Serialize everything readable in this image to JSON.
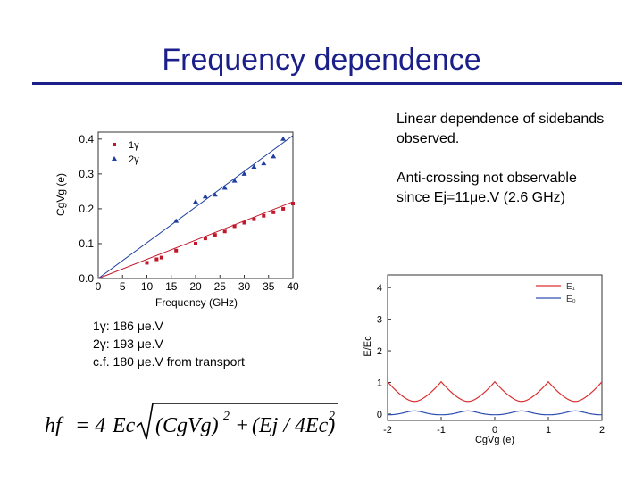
{
  "slide": {
    "title": "Frequency dependence",
    "notes": {
      "linear": "Linear dependence of sidebands observed.",
      "anticrossing": "Anti-crossing not observable since Ej=11μe.V (2.6 GHz)"
    },
    "fit_results": [
      "1γ: 186 μe.V",
      "2γ: 193 μe.V",
      "c.f. 180 μe.V from transport"
    ],
    "formula": {
      "lhs": "hf",
      "eq": "= 4",
      "coef": "Ec",
      "term1": "(CgVg)",
      "plus": "+",
      "term2": "(Ej / 4Ec)",
      "exp": "2"
    }
  },
  "chart_data": [
    {
      "type": "scatter",
      "title": "",
      "xlabel": "Frequency (GHz)",
      "ylabel": "CgVg (e)",
      "xlim": [
        0,
        40
      ],
      "ylim": [
        0,
        0.42
      ],
      "xticks": [
        0,
        5,
        10,
        15,
        20,
        25,
        30,
        35,
        40
      ],
      "yticks": [
        0.0,
        0.1,
        0.2,
        0.3,
        0.4
      ],
      "grid": false,
      "legend_position": "top-left",
      "series": [
        {
          "name": "1γ",
          "marker": "square",
          "color": "#c0182a",
          "x": [
            10,
            12,
            13,
            16,
            20,
            22,
            24,
            26,
            28,
            30,
            32,
            34,
            36,
            38,
            40
          ],
          "y": [
            0.045,
            0.055,
            0.06,
            0.08,
            0.1,
            0.115,
            0.125,
            0.135,
            0.15,
            0.16,
            0.17,
            0.18,
            0.19,
            0.2,
            0.215
          ]
        },
        {
          "name": "2γ",
          "marker": "triangle",
          "color": "#1f3fa0",
          "x": [
            16,
            20,
            22,
            24,
            26,
            28,
            30,
            32,
            34,
            36,
            38
          ],
          "y": [
            0.165,
            0.22,
            0.235,
            0.24,
            0.26,
            0.28,
            0.3,
            0.32,
            0.33,
            0.35,
            0.4
          ]
        }
      ],
      "fit_lines": [
        {
          "series": "1γ",
          "x": [
            0,
            40
          ],
          "y": [
            0,
            0.22
          ],
          "color": "#c0182a"
        },
        {
          "series": "2γ",
          "x": [
            0,
            40
          ],
          "y": [
            0,
            0.41
          ],
          "color": "#1f3fa0"
        }
      ]
    },
    {
      "type": "line",
      "title": "",
      "xlabel": "CgVg (e)",
      "ylabel": "E/Ec",
      "xlim": [
        -2,
        2
      ],
      "ylim": [
        -0.2,
        4.4
      ],
      "xticks": [
        -2,
        -1,
        0,
        1,
        2
      ],
      "yticks": [
        0,
        1,
        2,
        3,
        4
      ],
      "grid": false,
      "legend_position": "top-right",
      "series": [
        {
          "name": "E₁",
          "color": "#d93030",
          "band": "upper",
          "Ej_over_Ec": 0.3
        },
        {
          "name": "E₀",
          "color": "#2f4fb0",
          "band": "lower",
          "Ej_over_Ec": 0.3
        }
      ]
    }
  ]
}
